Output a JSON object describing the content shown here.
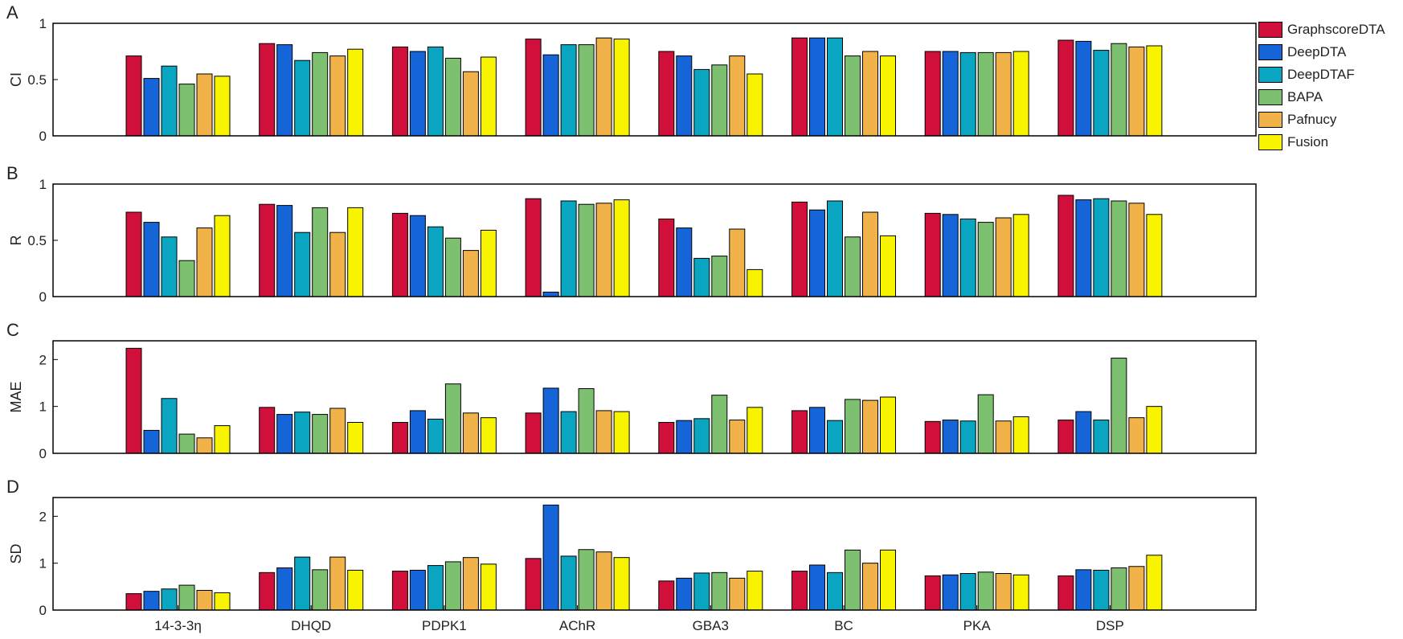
{
  "chart_data": {
    "type": "bar",
    "categories": [
      "14-3-3η",
      "DHQD",
      "PDPK1",
      "AChR",
      "GBA3",
      "BC",
      "PKA",
      "DSP"
    ],
    "series_meta": [
      {
        "name": "GraphscoreDTA",
        "color": "#d0103a"
      },
      {
        "name": "DeepDTA",
        "color": "#1565d8"
      },
      {
        "name": "DeepDTAF",
        "color": "#0aa5c0"
      },
      {
        "name": "BAPA",
        "color": "#7cc070"
      },
      {
        "name": "Pafnucy",
        "color": "#f1b24a"
      },
      {
        "name": "Fusion",
        "color": "#f8f400"
      }
    ],
    "legend_position": "top-right",
    "panels": [
      {
        "letter": "A",
        "ylabel": "CI",
        "ylim": [
          0,
          1
        ],
        "yticks": [
          0,
          0.5,
          1
        ],
        "ytick_labels": [
          "0",
          "0.5",
          "1"
        ],
        "series": [
          {
            "name": "GraphscoreDTA",
            "values": [
              0.71,
              0.82,
              0.79,
              0.86,
              0.75,
              0.87,
              0.75,
              0.85
            ]
          },
          {
            "name": "DeepDTA",
            "values": [
              0.51,
              0.81,
              0.75,
              0.72,
              0.71,
              0.87,
              0.75,
              0.84
            ]
          },
          {
            "name": "DeepDTAF",
            "values": [
              0.62,
              0.67,
              0.79,
              0.81,
              0.59,
              0.87,
              0.74,
              0.76
            ]
          },
          {
            "name": "BAPA",
            "values": [
              0.46,
              0.74,
              0.69,
              0.81,
              0.63,
              0.71,
              0.74,
              0.82
            ]
          },
          {
            "name": "Pafnucy",
            "values": [
              0.55,
              0.71,
              0.57,
              0.87,
              0.71,
              0.75,
              0.74,
              0.79
            ]
          },
          {
            "name": "Fusion",
            "values": [
              0.53,
              0.77,
              0.7,
              0.86,
              0.55,
              0.71,
              0.75,
              0.8
            ]
          }
        ]
      },
      {
        "letter": "B",
        "ylabel": "R",
        "ylim": [
          0,
          1
        ],
        "yticks": [
          0,
          0.5,
          1
        ],
        "ytick_labels": [
          "0",
          "0.5",
          "1"
        ],
        "series": [
          {
            "name": "GraphscoreDTA",
            "values": [
              0.75,
              0.82,
              0.74,
              0.87,
              0.69,
              0.84,
              0.74,
              0.9
            ]
          },
          {
            "name": "DeepDTA",
            "values": [
              0.66,
              0.81,
              0.72,
              0.04,
              0.61,
              0.77,
              0.73,
              0.86
            ]
          },
          {
            "name": "DeepDTAF",
            "values": [
              0.53,
              0.57,
              0.62,
              0.85,
              0.34,
              0.85,
              0.69,
              0.87
            ]
          },
          {
            "name": "BAPA",
            "values": [
              0.32,
              0.79,
              0.52,
              0.82,
              0.36,
              0.53,
              0.66,
              0.85
            ]
          },
          {
            "name": "Pafnucy",
            "values": [
              0.61,
              0.57,
              0.41,
              0.83,
              0.6,
              0.75,
              0.7,
              0.83
            ]
          },
          {
            "name": "Fusion",
            "values": [
              0.72,
              0.79,
              0.59,
              0.86,
              0.24,
              0.54,
              0.73,
              0.73
            ]
          }
        ]
      },
      {
        "letter": "C",
        "ylabel": "MAE",
        "ylim": [
          0,
          2.4
        ],
        "yticks": [
          0,
          1,
          2
        ],
        "ytick_labels": [
          "0",
          "1",
          "2"
        ],
        "series": [
          {
            "name": "GraphscoreDTA",
            "values": [
              2.24,
              0.98,
              0.66,
              0.86,
              0.66,
              0.91,
              0.68,
              0.71
            ]
          },
          {
            "name": "DeepDTA",
            "values": [
              0.49,
              0.83,
              0.91,
              1.39,
              0.7,
              0.98,
              0.71,
              0.89
            ]
          },
          {
            "name": "DeepDTAF",
            "values": [
              1.17,
              0.88,
              0.73,
              0.89,
              0.74,
              0.7,
              0.69,
              0.71
            ]
          },
          {
            "name": "BAPA",
            "values": [
              0.41,
              0.83,
              1.48,
              1.38,
              1.24,
              1.15,
              1.25,
              2.03
            ]
          },
          {
            "name": "Pafnucy",
            "values": [
              0.33,
              0.96,
              0.86,
              0.91,
              0.71,
              1.13,
              0.69,
              0.76
            ]
          },
          {
            "name": "Fusion",
            "values": [
              0.59,
              0.66,
              0.76,
              0.89,
              0.98,
              1.2,
              0.78,
              1.0
            ]
          }
        ]
      },
      {
        "letter": "D",
        "ylabel": "SD",
        "ylim": [
          0,
          2.4
        ],
        "yticks": [
          0,
          1,
          2
        ],
        "ytick_labels": [
          "0",
          "1",
          "2"
        ],
        "series": [
          {
            "name": "GraphscoreDTA",
            "values": [
              0.35,
              0.8,
              0.83,
              1.1,
              0.62,
              0.83,
              0.73,
              0.73
            ]
          },
          {
            "name": "DeepDTA",
            "values": [
              0.4,
              0.9,
              0.85,
              2.24,
              0.68,
              0.96,
              0.75,
              0.86
            ]
          },
          {
            "name": "DeepDTAF",
            "values": [
              0.45,
              1.13,
              0.95,
              1.15,
              0.79,
              0.8,
              0.78,
              0.85
            ]
          },
          {
            "name": "BAPA",
            "values": [
              0.53,
              0.86,
              1.03,
              1.29,
              0.8,
              1.28,
              0.81,
              0.9
            ]
          },
          {
            "name": "Pafnucy",
            "values": [
              0.42,
              1.13,
              1.12,
              1.24,
              0.68,
              1.0,
              0.78,
              0.93
            ]
          },
          {
            "name": "Fusion",
            "values": [
              0.37,
              0.85,
              0.98,
              1.12,
              0.83,
              1.28,
              0.75,
              1.17
            ]
          }
        ]
      }
    ]
  }
}
